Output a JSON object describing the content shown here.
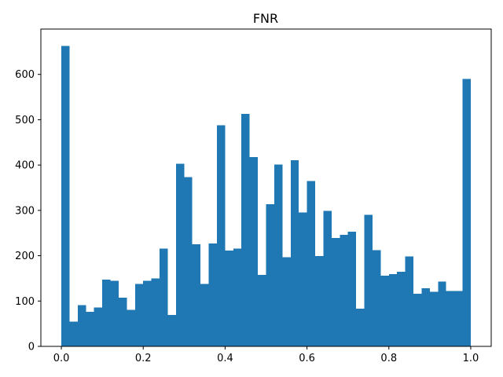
{
  "chart_data": {
    "type": "bar",
    "title": "FNR",
    "xlabel": "",
    "ylabel": "",
    "xlim": [
      -0.05,
      1.05
    ],
    "ylim": [
      0,
      700
    ],
    "xticks": [
      0.0,
      0.2,
      0.4,
      0.6,
      0.8,
      1.0
    ],
    "xtick_labels": [
      "0.0",
      "0.2",
      "0.4",
      "0.6",
      "0.8",
      "1.0"
    ],
    "yticks": [
      0,
      100,
      200,
      300,
      400,
      500,
      600
    ],
    "ytick_labels": [
      "0",
      "100",
      "200",
      "300",
      "400",
      "500",
      "600"
    ],
    "bin_edges_range": [
      0.0,
      1.0
    ],
    "bin_count": 50,
    "values": [
      663,
      55,
      91,
      76,
      86,
      147,
      145,
      107,
      81,
      138,
      145,
      150,
      216,
      69,
      403,
      373,
      225,
      138,
      227,
      488,
      211,
      216,
      513,
      418,
      158,
      314,
      401,
      197,
      411,
      295,
      365,
      199,
      299,
      239,
      246,
      253,
      83,
      290,
      212,
      156,
      159,
      165,
      198,
      116,
      128,
      120,
      143,
      122,
      122,
      590
    ],
    "bar_color": "#1f77b4",
    "grid": false
  }
}
